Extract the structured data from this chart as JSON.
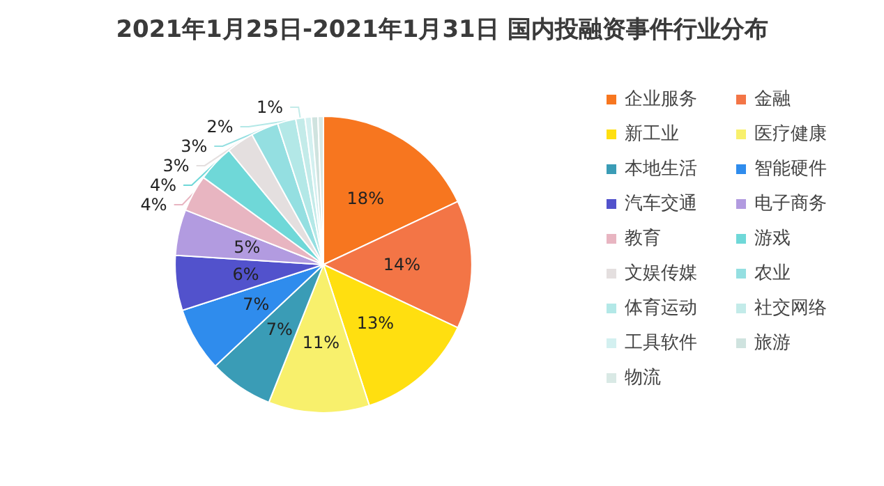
{
  "chart_data": {
    "type": "pie",
    "title": "2021年1月25日-2021年1月31日 国内投融资事件行业分布",
    "categories": [
      "企业服务",
      "金融",
      "新工业",
      "医疗健康",
      "本地生活",
      "智能硬件",
      "汽车交通",
      "电子商务",
      "教育",
      "游戏",
      "文娱传媒",
      "农业",
      "体育运动",
      "社交网络",
      "工具软件",
      "旅游",
      "物流"
    ],
    "values": [
      18,
      14,
      13,
      11,
      7,
      7,
      6,
      5,
      4,
      4,
      3,
      3,
      2,
      1,
      0.7,
      0.7,
      0.6
    ],
    "value_labels": [
      "18%",
      "14%",
      "13%",
      "11%",
      "7%",
      "7%",
      "6%",
      "5%",
      "4%",
      "4%",
      "3%",
      "3%",
      "2%",
      "1%",
      null,
      null,
      null
    ],
    "colors": [
      "#f7761f",
      "#f37546",
      "#ffdf10",
      "#f8f06c",
      "#3a9cb6",
      "#2f8ced",
      "#5252cc",
      "#b29be0",
      "#e8b5c1",
      "#6fd8d8",
      "#e4dfdf",
      "#94dfe1",
      "#b3e8e7",
      "#c3ebe9",
      "#d3f0f0",
      "#cfe3df",
      "#d9e9e5"
    ],
    "legend": "right"
  }
}
